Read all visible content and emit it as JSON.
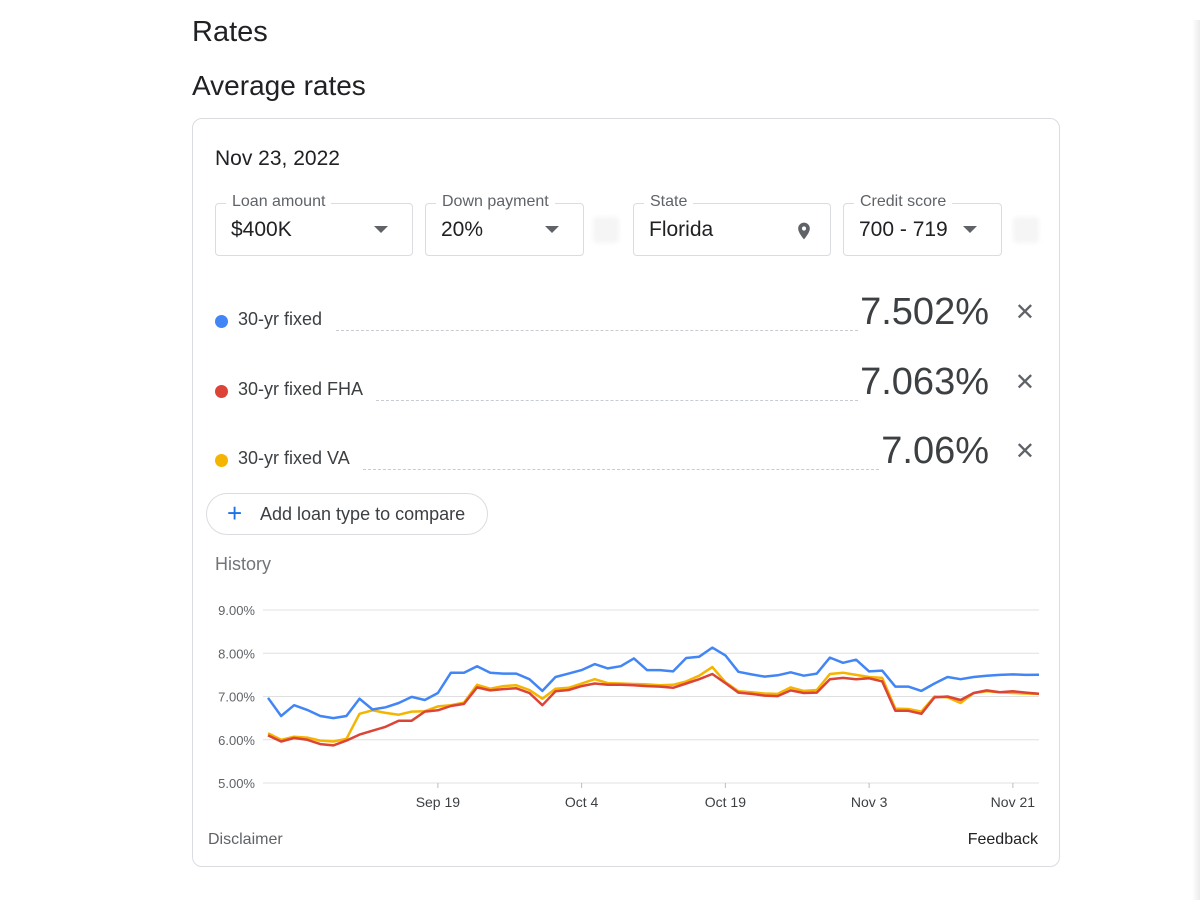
{
  "page_title": "Rates",
  "section_title": "Average rates",
  "card": {
    "date": "Nov 23, 2022",
    "fields": {
      "loan_amount": {
        "label": "Loan amount",
        "value": "$400K"
      },
      "down_payment": {
        "label": "Down payment",
        "value": "20%"
      },
      "state": {
        "label": "State",
        "value": "Florida"
      },
      "credit_score": {
        "label": "Credit score",
        "value": "700 - 719"
      }
    },
    "rates": [
      {
        "name": "30-yr fixed",
        "value": "7.502%",
        "color": "#4285f4"
      },
      {
        "name": "30-yr fixed FHA",
        "value": "7.063%",
        "color": "#db4437"
      },
      {
        "name": "30-yr fixed VA",
        "value": "7.06%",
        "color": "#f4b400"
      }
    ],
    "add_button_label": "Add loan type to compare",
    "history_label": "History",
    "disclaimer_label": "Disclaimer",
    "feedback_label": "Feedback"
  },
  "chart_data": {
    "type": "line",
    "title": "",
    "xlabel": "",
    "ylabel": "",
    "ylim": [
      5.0,
      9.0
    ],
    "y_ticks": [
      "9.00%",
      "8.00%",
      "7.00%",
      "6.00%",
      "5.00%"
    ],
    "x_tick_labels": [
      "Sep 19",
      "Oct 4",
      "Oct 19",
      "Nov 3",
      "Nov 21"
    ],
    "grid": true,
    "x": [
      "Aug 30",
      "Aug 31",
      "Sep 1",
      "Sep 2",
      "Sep 6",
      "Sep 7",
      "Sep 8",
      "Sep 9",
      "Sep 12",
      "Sep 13",
      "Sep 14",
      "Sep 15",
      "Sep 16",
      "Sep 19",
      "Sep 20",
      "Sep 21",
      "Sep 22",
      "Sep 23",
      "Sep 26",
      "Sep 27",
      "Sep 28",
      "Sep 29",
      "Sep 30",
      "Oct 3",
      "Oct 4",
      "Oct 5",
      "Oct 6",
      "Oct 7",
      "Oct 10",
      "Oct 11",
      "Oct 12",
      "Oct 13",
      "Oct 14",
      "Oct 17",
      "Oct 18",
      "Oct 19",
      "Oct 20",
      "Oct 21",
      "Oct 24",
      "Oct 25",
      "Oct 26",
      "Oct 27",
      "Oct 28",
      "Oct 31",
      "Nov 1",
      "Nov 2",
      "Nov 3",
      "Nov 4",
      "Nov 7",
      "Nov 8",
      "Nov 9",
      "Nov 10",
      "Nov 14",
      "Nov 15",
      "Nov 16",
      "Nov 17",
      "Nov 18",
      "Nov 21",
      "Nov 22",
      "Nov 23"
    ],
    "series": [
      {
        "name": "30-yr fixed",
        "color": "#4285f4",
        "values": [
          6.97,
          6.55,
          6.8,
          6.69,
          6.55,
          6.5,
          6.55,
          6.95,
          6.7,
          6.75,
          6.85,
          6.99,
          6.92,
          7.08,
          7.55,
          7.55,
          7.7,
          7.55,
          7.53,
          7.53,
          7.4,
          7.13,
          7.45,
          7.53,
          7.61,
          7.75,
          7.65,
          7.7,
          7.88,
          7.61,
          7.61,
          7.58,
          7.89,
          7.92,
          8.13,
          7.95,
          7.57,
          7.51,
          7.46,
          7.49,
          7.56,
          7.48,
          7.53,
          7.9,
          7.78,
          7.85,
          7.58,
          7.6,
          7.23,
          7.23,
          7.13,
          7.3,
          7.45,
          7.4,
          7.45,
          7.48,
          7.5,
          7.51,
          7.5,
          7.502
        ]
      },
      {
        "name": "30-yr fixed FHA",
        "color": "#db4437",
        "values": [
          6.1,
          5.96,
          6.04,
          6.0,
          5.9,
          5.87,
          5.98,
          6.12,
          6.21,
          6.3,
          6.44,
          6.44,
          6.65,
          6.68,
          6.78,
          6.83,
          7.21,
          7.14,
          7.17,
          7.19,
          7.08,
          6.8,
          7.12,
          7.15,
          7.24,
          7.3,
          7.27,
          7.27,
          7.26,
          7.24,
          7.23,
          7.2,
          7.3,
          7.4,
          7.52,
          7.31,
          7.09,
          7.06,
          7.02,
          7.01,
          7.14,
          7.08,
          7.09,
          7.4,
          7.43,
          7.4,
          7.42,
          7.35,
          6.67,
          6.67,
          6.6,
          6.98,
          7.0,
          6.92,
          7.08,
          7.14,
          7.1,
          7.12,
          7.09,
          7.063
        ]
      },
      {
        "name": "30-yr fixed VA",
        "color": "#f4b400",
        "values": [
          6.15,
          6.0,
          6.07,
          6.05,
          5.98,
          5.96,
          6.02,
          6.6,
          6.68,
          6.62,
          6.58,
          6.65,
          6.66,
          6.77,
          6.8,
          6.86,
          7.27,
          7.18,
          7.24,
          7.26,
          7.15,
          6.95,
          7.18,
          7.2,
          7.3,
          7.4,
          7.31,
          7.3,
          7.29,
          7.28,
          7.26,
          7.27,
          7.35,
          7.48,
          7.68,
          7.33,
          7.12,
          7.1,
          7.07,
          7.06,
          7.21,
          7.13,
          7.15,
          7.52,
          7.55,
          7.5,
          7.45,
          7.43,
          6.72,
          6.71,
          6.65,
          7.0,
          6.98,
          6.85,
          7.08,
          7.12,
          7.1,
          7.08,
          7.07,
          7.06
        ]
      }
    ]
  }
}
